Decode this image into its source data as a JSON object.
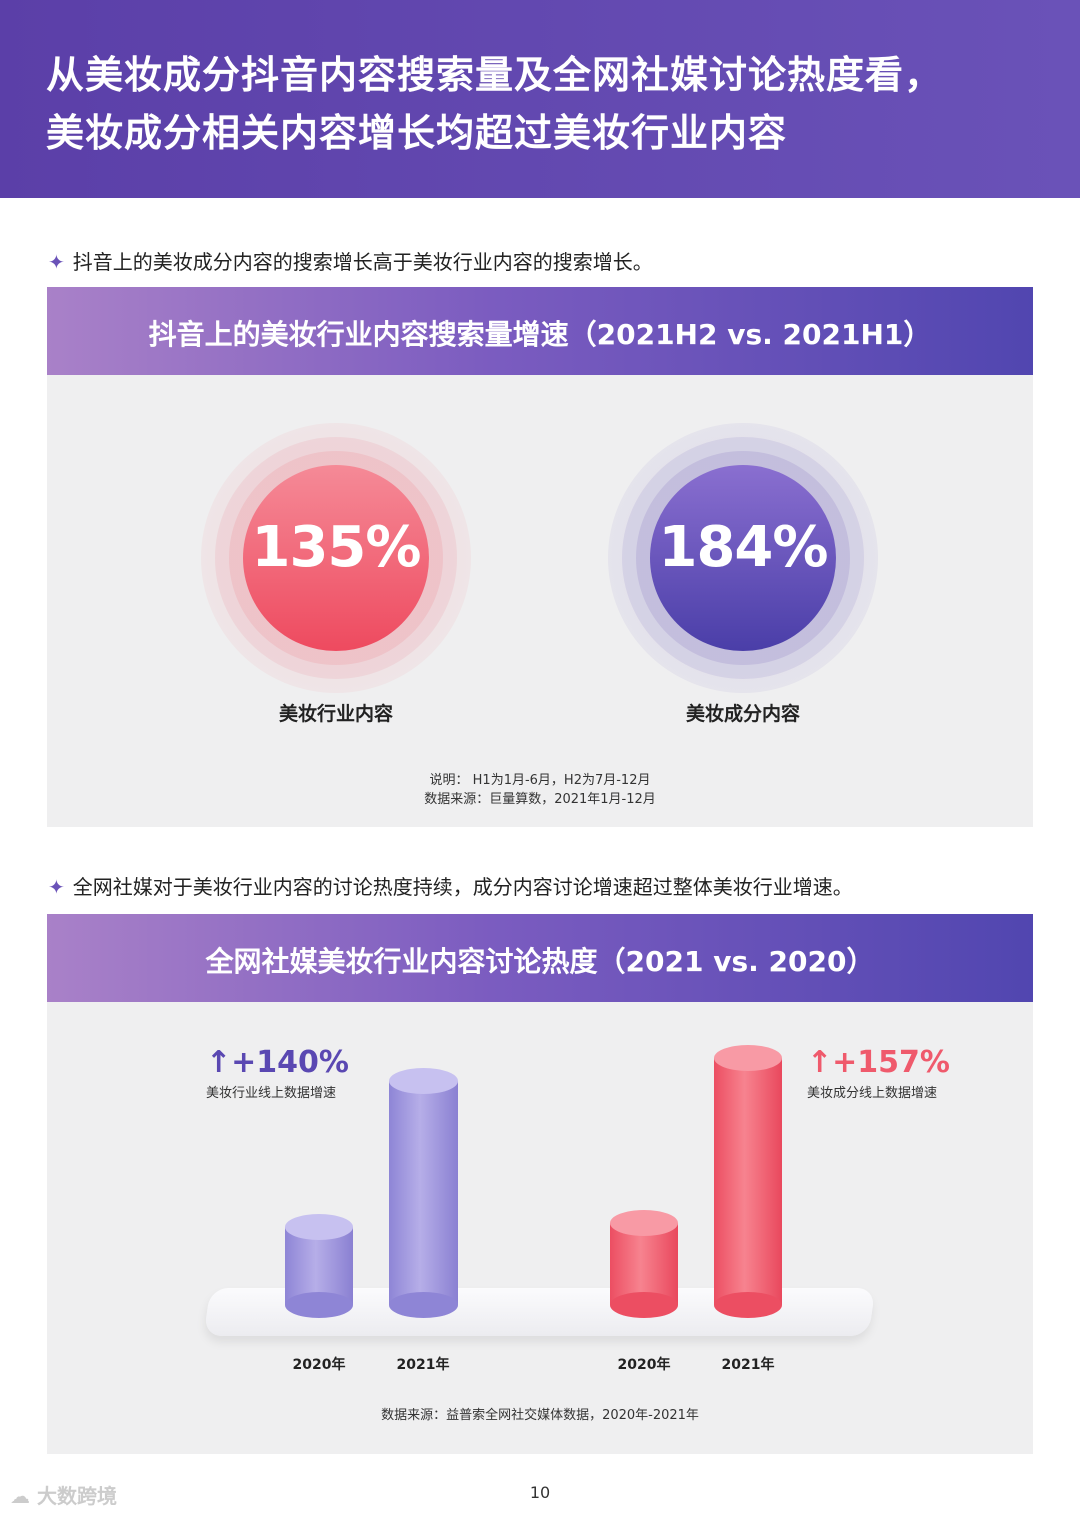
{
  "header": {
    "line1": "从美妆成分抖音内容搜索量及全网社媒讨论热度看，",
    "line2": "美妆成分相关内容增长均超过美妆行业内容"
  },
  "section1": {
    "bullet": "抖音上的美妆成分内容的搜索增长高于美妆行业内容的搜索增长。",
    "card_title": "抖音上的美妆行业内容搜索量增速（2021H2 vs. 2021H1）",
    "circles": [
      {
        "value": "135%",
        "label": "美妆行业内容",
        "color": "#ef5a6c"
      },
      {
        "value": "184%",
        "label": "美妆成分内容",
        "color": "#5a48b2"
      }
    ],
    "note1": "说明： H1为1月-6月，H2为7月-12月",
    "note2": "数据来源：巨量算数，2021年1月-12月"
  },
  "section2": {
    "bullet": "全网社媒对于美妆行业内容的讨论热度持续，成分内容讨论增速超过整体美妆行业增速。",
    "card_title": "全网社媒美妆行业内容讨论热度（2021 vs. 2020）",
    "groups": [
      {
        "growth": "+140%",
        "growth_desc": "美妆行业线上数据增速",
        "color": "#5a48b2",
        "years": [
          "2020年",
          "2021年"
        ]
      },
      {
        "growth": "+157%",
        "growth_desc": "美妆成分线上数据增速",
        "color": "#ef5a6c",
        "years": [
          "2020年",
          "2021年"
        ]
      }
    ],
    "source": "数据来源：益普索全网社交媒体数据，2020年-2021年"
  },
  "footer": {
    "page_number": "10",
    "watermark": "大数跨境"
  }
}
